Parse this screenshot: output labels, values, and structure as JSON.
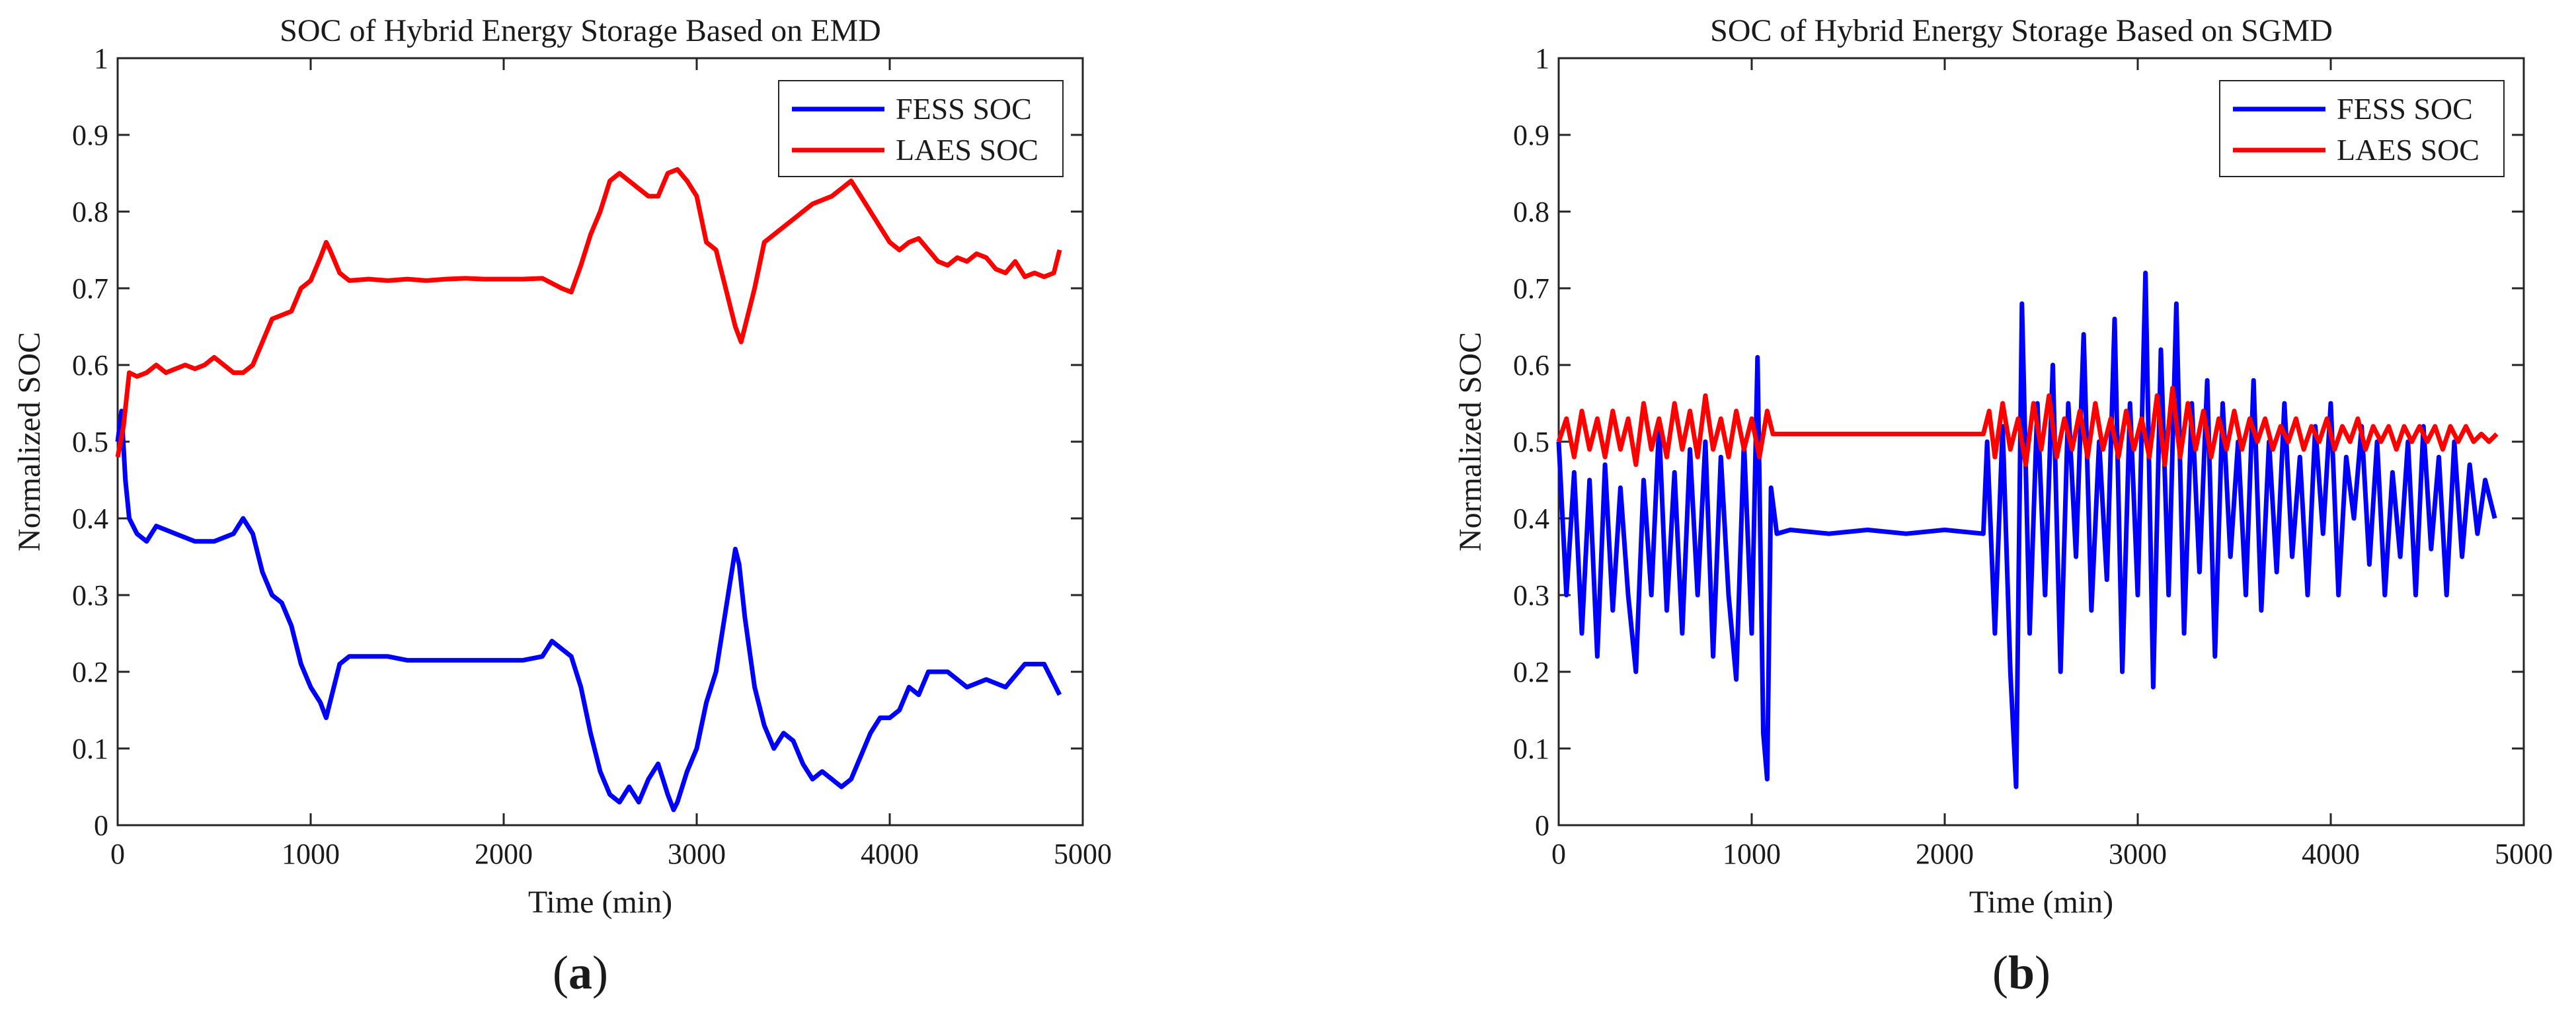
{
  "chart_data": [
    {
      "type": "line",
      "panel": "(a)",
      "panel_letter": "a",
      "title": "SOC of Hybrid Energy Storage Based on EMD",
      "xlabel": "Time (min)",
      "ylabel": "Normalized SOC",
      "xlim": [
        0,
        5000
      ],
      "ylim": [
        0,
        1
      ],
      "xticks": [
        0,
        1000,
        2000,
        3000,
        4000,
        5000
      ],
      "yticks": [
        0,
        0.1,
        0.2,
        0.3,
        0.4,
        0.5,
        0.6,
        0.7,
        0.8,
        0.9,
        1
      ],
      "ytick_labels": [
        "0",
        "0.1",
        "0.2",
        "0.3",
        "0.4",
        "0.5",
        "0.6",
        "0.7",
        "0.8",
        "0.9",
        "1"
      ],
      "grid": false,
      "legend_position": "top-right",
      "series": [
        {
          "name": "FESS SOC",
          "color": "#0000ff",
          "x": [
            0,
            20,
            40,
            60,
            100,
            150,
            200,
            300,
            400,
            500,
            600,
            650,
            700,
            750,
            800,
            850,
            900,
            950,
            1000,
            1050,
            1080,
            1100,
            1150,
            1200,
            1300,
            1400,
            1500,
            1600,
            1700,
            1800,
            1900,
            2000,
            2100,
            2200,
            2250,
            2300,
            2350,
            2400,
            2450,
            2500,
            2550,
            2600,
            2650,
            2700,
            2750,
            2800,
            2850,
            2880,
            2900,
            2950,
            3000,
            3050,
            3100,
            3150,
            3200,
            3220,
            3250,
            3300,
            3350,
            3400,
            3450,
            3500,
            3550,
            3600,
            3650,
            3700,
            3750,
            3800,
            3850,
            3900,
            3950,
            4000,
            4050,
            4100,
            4150,
            4200,
            4300,
            4400,
            4500,
            4600,
            4700,
            4800,
            4880
          ],
          "y": [
            0.5,
            0.54,
            0.45,
            0.4,
            0.38,
            0.37,
            0.39,
            0.38,
            0.37,
            0.37,
            0.38,
            0.4,
            0.38,
            0.33,
            0.3,
            0.29,
            0.26,
            0.21,
            0.18,
            0.16,
            0.14,
            0.16,
            0.21,
            0.22,
            0.22,
            0.22,
            0.215,
            0.215,
            0.215,
            0.215,
            0.215,
            0.215,
            0.215,
            0.22,
            0.24,
            0.23,
            0.22,
            0.18,
            0.12,
            0.07,
            0.04,
            0.03,
            0.05,
            0.03,
            0.06,
            0.08,
            0.04,
            0.02,
            0.03,
            0.07,
            0.1,
            0.16,
            0.2,
            0.28,
            0.36,
            0.34,
            0.27,
            0.18,
            0.13,
            0.1,
            0.12,
            0.11,
            0.08,
            0.06,
            0.07,
            0.06,
            0.05,
            0.06,
            0.09,
            0.12,
            0.14,
            0.14,
            0.15,
            0.18,
            0.17,
            0.2,
            0.2,
            0.18,
            0.19,
            0.18,
            0.21,
            0.21,
            0.17
          ]
        },
        {
          "name": "LAES SOC",
          "color": "#ff0000",
          "x": [
            0,
            30,
            60,
            100,
            150,
            200,
            250,
            300,
            350,
            400,
            450,
            500,
            550,
            600,
            650,
            700,
            750,
            800,
            850,
            900,
            950,
            1000,
            1050,
            1080,
            1100,
            1150,
            1200,
            1300,
            1400,
            1500,
            1600,
            1700,
            1800,
            1900,
            2000,
            2100,
            2200,
            2300,
            2350,
            2400,
            2450,
            2500,
            2550,
            2600,
            2650,
            2700,
            2750,
            2800,
            2850,
            2900,
            2950,
            3000,
            3050,
            3100,
            3150,
            3200,
            3230,
            3300,
            3350,
            3400,
            3500,
            3600,
            3700,
            3750,
            3800,
            3850,
            3900,
            3950,
            4000,
            4050,
            4100,
            4150,
            4200,
            4250,
            4300,
            4350,
            4400,
            4450,
            4500,
            4550,
            4600,
            4650,
            4700,
            4750,
            4800,
            4850,
            4880
          ],
          "y": [
            0.48,
            0.52,
            0.59,
            0.585,
            0.59,
            0.6,
            0.59,
            0.595,
            0.6,
            0.595,
            0.6,
            0.61,
            0.6,
            0.59,
            0.59,
            0.6,
            0.63,
            0.66,
            0.665,
            0.67,
            0.7,
            0.71,
            0.74,
            0.76,
            0.75,
            0.72,
            0.71,
            0.712,
            0.71,
            0.712,
            0.71,
            0.712,
            0.713,
            0.712,
            0.712,
            0.712,
            0.713,
            0.7,
            0.695,
            0.73,
            0.77,
            0.8,
            0.84,
            0.85,
            0.84,
            0.83,
            0.82,
            0.82,
            0.85,
            0.855,
            0.84,
            0.82,
            0.76,
            0.75,
            0.7,
            0.65,
            0.63,
            0.7,
            0.76,
            0.77,
            0.79,
            0.81,
            0.82,
            0.83,
            0.84,
            0.82,
            0.8,
            0.78,
            0.76,
            0.75,
            0.76,
            0.765,
            0.75,
            0.735,
            0.73,
            0.74,
            0.735,
            0.745,
            0.74,
            0.725,
            0.72,
            0.735,
            0.715,
            0.72,
            0.715,
            0.72,
            0.75
          ]
        }
      ]
    },
    {
      "type": "line",
      "panel": "(b)",
      "panel_letter": "b",
      "title": "SOC of Hybrid Energy Storage Based on SGMD",
      "xlabel": "Time (min)",
      "ylabel": "Normalized SOC",
      "xlim": [
        0,
        5000
      ],
      "ylim": [
        0,
        1
      ],
      "xticks": [
        0,
        1000,
        2000,
        3000,
        4000,
        5000
      ],
      "yticks": [
        0,
        0.1,
        0.2,
        0.3,
        0.4,
        0.5,
        0.6,
        0.7,
        0.8,
        0.9,
        1
      ],
      "ytick_labels": [
        "0",
        "0.1",
        "0.2",
        "0.3",
        "0.4",
        "0.5",
        "0.6",
        "0.7",
        "0.8",
        "0.9",
        "1"
      ],
      "grid": false,
      "legend_position": "top-right",
      "series": [
        {
          "name": "FESS SOC",
          "color": "#0000ff",
          "x": [
            0,
            40,
            80,
            120,
            160,
            200,
            240,
            280,
            320,
            360,
            400,
            440,
            480,
            520,
            560,
            600,
            640,
            680,
            720,
            760,
            800,
            840,
            880,
            920,
            960,
            1000,
            1030,
            1060,
            1080,
            1100,
            1130,
            1200,
            1400,
            1600,
            1800,
            2000,
            2200,
            2220,
            2260,
            2300,
            2340,
            2370,
            2400,
            2440,
            2480,
            2520,
            2560,
            2600,
            2640,
            2680,
            2720,
            2760,
            2800,
            2840,
            2880,
            2920,
            2960,
            3000,
            3040,
            3080,
            3120,
            3160,
            3200,
            3240,
            3280,
            3320,
            3360,
            3400,
            3440,
            3480,
            3520,
            3560,
            3600,
            3640,
            3680,
            3720,
            3760,
            3800,
            3840,
            3880,
            3920,
            3960,
            4000,
            4040,
            4080,
            4120,
            4160,
            4200,
            4240,
            4280,
            4320,
            4360,
            4400,
            4440,
            4480,
            4520,
            4560,
            4600,
            4640,
            4680,
            4720,
            4760,
            4800,
            4850
          ],
          "y": [
            0.5,
            0.3,
            0.46,
            0.25,
            0.45,
            0.22,
            0.47,
            0.28,
            0.44,
            0.3,
            0.2,
            0.45,
            0.3,
            0.52,
            0.28,
            0.46,
            0.25,
            0.49,
            0.3,
            0.5,
            0.22,
            0.48,
            0.3,
            0.19,
            0.5,
            0.25,
            0.61,
            0.12,
            0.06,
            0.44,
            0.38,
            0.385,
            0.38,
            0.385,
            0.38,
            0.385,
            0.38,
            0.5,
            0.25,
            0.52,
            0.2,
            0.05,
            0.68,
            0.25,
            0.55,
            0.3,
            0.6,
            0.2,
            0.55,
            0.35,
            0.64,
            0.28,
            0.5,
            0.32,
            0.66,
            0.2,
            0.55,
            0.3,
            0.72,
            0.18,
            0.62,
            0.3,
            0.68,
            0.25,
            0.55,
            0.33,
            0.58,
            0.22,
            0.55,
            0.35,
            0.5,
            0.3,
            0.58,
            0.28,
            0.5,
            0.33,
            0.55,
            0.35,
            0.48,
            0.3,
            0.52,
            0.38,
            0.55,
            0.3,
            0.48,
            0.4,
            0.52,
            0.34,
            0.5,
            0.3,
            0.46,
            0.35,
            0.5,
            0.3,
            0.52,
            0.36,
            0.48,
            0.3,
            0.5,
            0.35,
            0.47,
            0.38,
            0.45,
            0.4
          ]
        },
        {
          "name": "LAES SOC",
          "color": "#ff0000",
          "x": [
            0,
            40,
            80,
            120,
            160,
            200,
            240,
            280,
            320,
            360,
            400,
            440,
            480,
            520,
            560,
            600,
            640,
            680,
            720,
            760,
            800,
            840,
            880,
            920,
            960,
            1000,
            1040,
            1080,
            1110,
            1200,
            1400,
            1600,
            1800,
            2000,
            2200,
            2230,
            2260,
            2300,
            2340,
            2380,
            2420,
            2460,
            2500,
            2540,
            2580,
            2620,
            2660,
            2700,
            2740,
            2780,
            2820,
            2860,
            2900,
            2940,
            2980,
            3020,
            3060,
            3100,
            3140,
            3180,
            3220,
            3260,
            3300,
            3340,
            3380,
            3420,
            3460,
            3500,
            3540,
            3580,
            3620,
            3660,
            3700,
            3740,
            3780,
            3820,
            3860,
            3900,
            3940,
            3980,
            4020,
            4060,
            4100,
            4140,
            4180,
            4220,
            4260,
            4300,
            4340,
            4380,
            4420,
            4460,
            4500,
            4540,
            4580,
            4620,
            4660,
            4700,
            4740,
            4780,
            4820,
            4860
          ],
          "y": [
            0.5,
            0.53,
            0.48,
            0.54,
            0.49,
            0.53,
            0.48,
            0.54,
            0.49,
            0.53,
            0.47,
            0.55,
            0.49,
            0.53,
            0.48,
            0.55,
            0.49,
            0.54,
            0.48,
            0.56,
            0.49,
            0.53,
            0.48,
            0.54,
            0.49,
            0.53,
            0.48,
            0.54,
            0.51,
            0.51,
            0.51,
            0.51,
            0.51,
            0.51,
            0.51,
            0.54,
            0.48,
            0.55,
            0.49,
            0.53,
            0.47,
            0.55,
            0.49,
            0.56,
            0.48,
            0.53,
            0.49,
            0.54,
            0.48,
            0.55,
            0.49,
            0.53,
            0.48,
            0.54,
            0.49,
            0.53,
            0.48,
            0.56,
            0.47,
            0.57,
            0.48,
            0.55,
            0.49,
            0.54,
            0.48,
            0.53,
            0.49,
            0.54,
            0.49,
            0.53,
            0.5,
            0.53,
            0.49,
            0.52,
            0.5,
            0.53,
            0.49,
            0.52,
            0.5,
            0.53,
            0.49,
            0.52,
            0.5,
            0.53,
            0.49,
            0.52,
            0.5,
            0.52,
            0.49,
            0.52,
            0.5,
            0.52,
            0.5,
            0.52,
            0.49,
            0.52,
            0.5,
            0.52,
            0.5,
            0.51,
            0.5,
            0.51
          ]
        }
      ]
    }
  ]
}
